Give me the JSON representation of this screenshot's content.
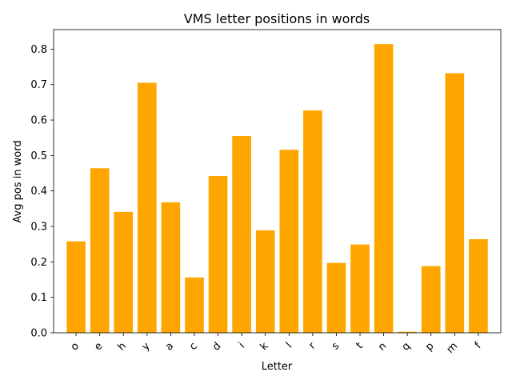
{
  "chart_data": {
    "type": "bar",
    "title": "VMS letter positions in words",
    "xlabel": "Letter",
    "ylabel": "Avg pos in word",
    "categories": [
      "o",
      "e",
      "h",
      "y",
      "a",
      "c",
      "d",
      "i",
      "k",
      "l",
      "r",
      "s",
      "t",
      "n",
      "q",
      "p",
      "m",
      "f"
    ],
    "values": [
      0.258,
      0.464,
      0.341,
      0.705,
      0.368,
      0.156,
      0.442,
      0.555,
      0.289,
      0.516,
      0.627,
      0.197,
      0.249,
      0.814,
      0.003,
      0.188,
      0.732,
      0.264
    ],
    "ylim": [
      0,
      0.855
    ],
    "yticks": [
      "0.0",
      "0.1",
      "0.2",
      "0.3",
      "0.4",
      "0.5",
      "0.6",
      "0.7",
      "0.8"
    ],
    "bar_color": "#ffa500",
    "grid": false,
    "legend": "none"
  }
}
